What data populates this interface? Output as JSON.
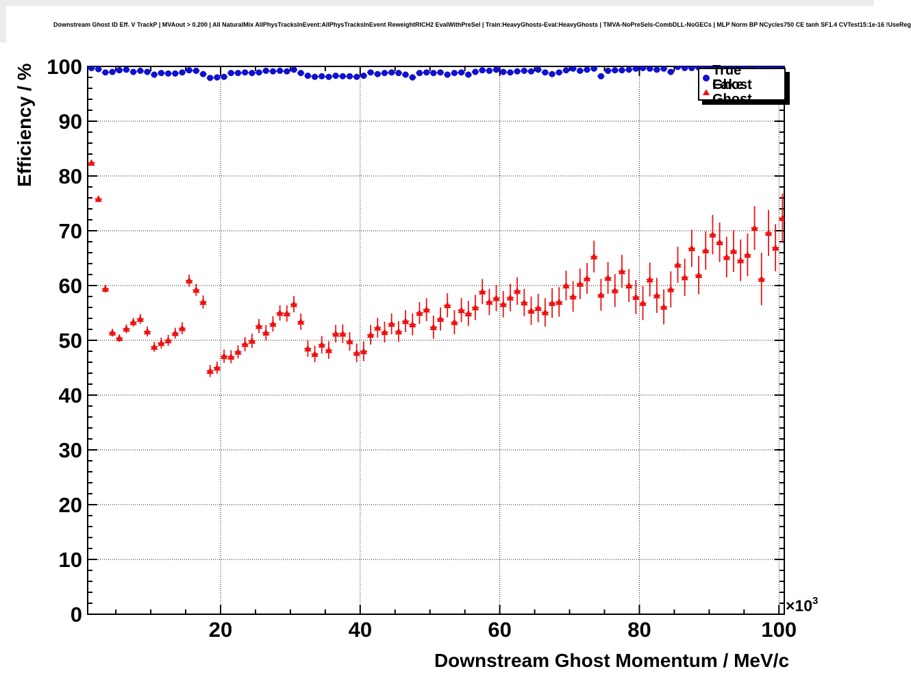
{
  "title": "Downstream Ghost ID Eff. V TrackP | MVAout > 0.200 | All NaturalMix AllPhysTracksInEvent:AllPhysTracksInEvent ReweightRICH2 EvalWithPreSel | Train:HeavyGhosts-Eval:HeavyGhosts | TMVA-NoPreSels-CombDLL-NoGECs | MLP Norm BP NCycles750 CE tanh SF1.4 CVTest15:1e-16 !UseReg",
  "chart_data": {
    "type": "scatter",
    "xlabel": "Downstream Ghost Momentum / MeV/c",
    "ylabel": "Efficiency / %",
    "x_mult": {
      "base": "×10",
      "exp": "3"
    },
    "x_unit_scale": 1000,
    "xlim": [
      0.96,
      100.76
    ],
    "ylim": [
      0,
      100
    ],
    "xticks": [
      20,
      40,
      60,
      80,
      100
    ],
    "yticks": [
      0,
      10,
      20,
      30,
      40,
      50,
      60,
      70,
      80,
      90,
      100
    ],
    "x_minor_step": 5,
    "y_minor_step": 2,
    "grid": true,
    "grid_style": "dotted",
    "legend": {
      "position": "top-right",
      "entries": [
        {
          "label": "True Ghost",
          "marker": "circle",
          "color": "#1010d0"
        },
        {
          "label": "Fake Ghost",
          "marker": "triangle",
          "color": "#ee1111"
        }
      ]
    },
    "bin_half_width": 0.5,
    "x": [
      1.5,
      2.5,
      3.5,
      4.5,
      5.5,
      6.5,
      7.5,
      8.5,
      9.5,
      10.5,
      11.5,
      12.5,
      13.5,
      14.5,
      15.5,
      16.5,
      17.5,
      18.5,
      19.5,
      20.5,
      21.5,
      22.5,
      23.5,
      24.5,
      25.5,
      26.5,
      27.5,
      28.5,
      29.5,
      30.5,
      31.5,
      32.5,
      33.5,
      34.5,
      35.5,
      36.5,
      37.5,
      38.5,
      39.5,
      40.5,
      41.5,
      42.5,
      43.5,
      44.5,
      45.5,
      46.5,
      47.5,
      48.5,
      49.5,
      50.5,
      51.5,
      52.5,
      53.5,
      54.5,
      55.5,
      56.5,
      57.5,
      58.5,
      59.5,
      60.5,
      61.5,
      62.5,
      63.5,
      64.5,
      65.5,
      66.5,
      67.5,
      68.5,
      69.5,
      70.5,
      71.5,
      72.5,
      73.5,
      74.5,
      75.5,
      76.5,
      77.5,
      78.5,
      79.5,
      80.5,
      81.5,
      82.5,
      83.5,
      84.5,
      85.5,
      86.5,
      87.5,
      88.5,
      89.5,
      90.5,
      91.5,
      92.5,
      93.5,
      94.5,
      95.5,
      96.5,
      97.5,
      98.5,
      99.5,
      100.5
    ],
    "series": [
      {
        "name": "True Ghost",
        "marker": "circle",
        "color": "#1010d0",
        "errors_const": 0.25,
        "values": [
          99.7,
          99.5,
          98.9,
          99.0,
          99.3,
          99.4,
          99.0,
          99.2,
          99.0,
          98.5,
          98.8,
          98.7,
          98.7,
          98.9,
          99.3,
          99.2,
          98.6,
          97.9,
          98.0,
          98.1,
          98.8,
          98.8,
          98.9,
          98.8,
          98.9,
          99.2,
          99.1,
          99.2,
          99.1,
          99.4,
          98.8,
          98.3,
          98.1,
          98.2,
          98.1,
          98.3,
          98.2,
          98.2,
          98.1,
          98.3,
          98.9,
          98.6,
          98.8,
          98.9,
          98.8,
          98.5,
          98.0,
          98.8,
          98.9,
          98.8,
          98.9,
          98.5,
          98.8,
          98.9,
          98.5,
          99.0,
          99.3,
          99.2,
          99.4,
          99.0,
          98.9,
          99.1,
          99.2,
          99.1,
          99.4,
          98.9,
          98.6,
          98.9,
          99.3,
          99.6,
          99.2,
          99.4,
          99.6,
          98.2,
          99.2,
          99.3,
          99.3,
          99.4,
          99.6,
          99.7,
          99.6,
          99.4,
          99.6,
          99.0,
          99.9,
          99.7,
          99.7,
          99.8,
          99.7,
          99.8,
          99.9,
          99.7,
          99.8,
          99.9,
          99.8,
          99.7,
          99.9,
          99.8,
          99.9,
          99.8
        ]
      },
      {
        "name": "Fake Ghost",
        "marker": "triangle",
        "color": "#ee1111",
        "values": [
          82.4,
          75.8,
          59.4,
          51.4,
          50.4,
          52.1,
          53.3,
          53.9,
          51.6,
          48.8,
          49.5,
          50.0,
          51.3,
          52.2,
          60.9,
          59.2,
          57.0,
          44.4,
          45.0,
          47.1,
          47.0,
          47.9,
          49.3,
          49.9,
          52.6,
          51.4,
          53.0,
          55.0,
          54.9,
          56.6,
          53.4,
          48.5,
          47.5,
          49.2,
          48.2,
          51.2,
          51.2,
          49.8,
          47.7,
          48.0,
          51.0,
          52.3,
          51.5,
          53.0,
          51.6,
          53.5,
          52.9,
          55.0,
          55.6,
          52.4,
          53.9,
          56.4,
          53.3,
          55.5,
          54.9,
          56.0,
          58.9,
          57.0,
          57.7,
          56.6,
          57.8,
          59.0,
          56.9,
          55.4,
          55.9,
          55.1,
          56.8,
          57.0,
          60.0,
          58.0,
          60.3,
          61.3,
          65.3,
          58.3,
          61.4,
          59.1,
          62.6,
          60.0,
          57.9,
          56.8,
          61.1,
          58.2,
          56.1,
          59.3,
          63.8,
          61.5,
          66.8,
          61.9,
          66.4,
          69.3,
          67.9,
          65.2,
          66.3,
          64.6,
          65.6,
          70.5,
          61.2,
          69.6,
          66.9,
          72.3
        ],
        "errors": [
          0.5,
          0.6,
          0.7,
          0.7,
          0.7,
          0.8,
          0.8,
          0.9,
          0.9,
          0.9,
          1.0,
          1.0,
          1.0,
          1.1,
          1.1,
          1.1,
          1.2,
          1.1,
          1.1,
          1.2,
          1.2,
          1.2,
          1.3,
          1.3,
          1.3,
          1.4,
          1.4,
          1.4,
          1.5,
          1.5,
          1.5,
          1.5,
          1.5,
          1.6,
          1.6,
          1.6,
          1.7,
          1.7,
          1.7,
          1.8,
          1.8,
          1.8,
          1.9,
          1.9,
          1.9,
          2.0,
          2.0,
          2.0,
          2.1,
          2.1,
          2.1,
          2.2,
          2.2,
          2.2,
          2.3,
          2.3,
          2.3,
          2.4,
          2.4,
          2.4,
          2.5,
          2.5,
          2.5,
          2.6,
          2.6,
          2.6,
          2.7,
          2.7,
          2.7,
          2.8,
          2.8,
          2.8,
          2.9,
          2.9,
          2.9,
          3.0,
          3.0,
          3.0,
          3.1,
          3.1,
          3.1,
          3.2,
          3.2,
          3.3,
          3.3,
          3.4,
          3.4,
          3.5,
          3.5,
          3.6,
          3.6,
          3.7,
          3.8,
          3.8,
          3.9,
          4.0,
          4.8,
          4.2,
          4.3,
          4.5
        ]
      }
    ]
  }
}
